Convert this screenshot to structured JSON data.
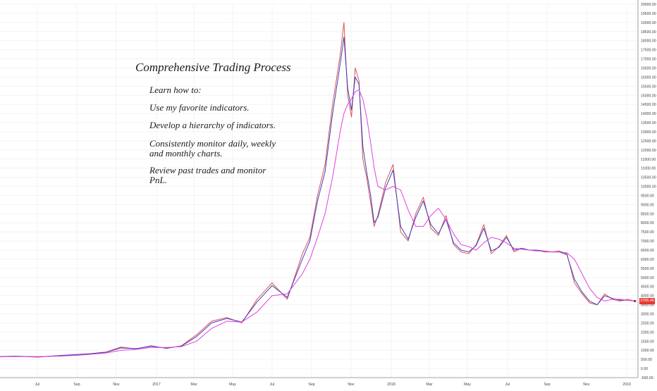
{
  "annotation": {
    "title": "Comprehensive Trading Process",
    "lines": [
      "Learn how to:",
      "Use my favorite indicators.",
      "Develop a hierarchy of indicators.",
      "Consistently monitor daily, weekly\nand monthly charts.",
      "Review past trades and monitor\nPnL."
    ]
  },
  "last_price_label": "3785.46",
  "colors": {
    "price_line": "#e05252",
    "fast_ma": "#3f3fbf",
    "slow_ma": "#e040e0",
    "last_price_badge": "#e53935",
    "axis_text": "#444444",
    "grid": "#f3f3f3"
  },
  "chart_data": {
    "type": "line",
    "grid": true,
    "legend": "none",
    "y_axis_position": "right",
    "ylim": [
      -500,
      20000
    ],
    "y_ticks": [
      "20000.00",
      "19500.00",
      "19000.00",
      "18500.00",
      "18000.00",
      "17500.00",
      "17000.00",
      "16500.00",
      "16000.00",
      "15500.00",
      "15000.00",
      "14500.00",
      "14000.00",
      "13500.00",
      "13000.00",
      "12500.00",
      "12000.00",
      "11500.00",
      "11000.00",
      "10500.00",
      "10000.00",
      "9500.00",
      "9000.00",
      "8500.00",
      "8000.00",
      "7500.00",
      "7000.00",
      "6500.00",
      "6000.00",
      "5500.00",
      "5000.00",
      "4500.00",
      "4000.00",
      "3500.00",
      "3000.00",
      "2500.00",
      "2000.00",
      "1500.00",
      "1000.00",
      "500.00",
      "0.00",
      "-500.00"
    ],
    "x_ticks": [
      "Jul",
      "Sep",
      "Nov",
      "2017",
      "Mar",
      "May",
      "Jul",
      "Sep",
      "Nov",
      "2018",
      "Mar",
      "May",
      "Jul",
      "Sep",
      "Nov",
      "2019"
    ],
    "x": [
      0,
      2,
      5,
      8,
      10,
      12,
      14,
      16,
      18,
      20,
      22,
      24,
      26,
      28,
      30,
      32,
      34,
      36,
      38,
      40,
      41,
      42,
      43,
      44,
      45,
      45.5,
      46,
      46.5,
      47,
      47.5,
      48,
      48.5,
      49,
      49.5,
      50,
      51,
      52,
      53,
      54,
      55,
      56,
      57,
      58,
      59,
      60,
      61,
      62,
      63,
      64,
      65,
      66,
      67,
      68,
      69,
      70,
      71,
      72,
      73,
      74,
      75,
      76,
      77,
      78,
      79,
      80,
      81,
      82,
      83,
      84
    ],
    "series": [
      {
        "values": [
          650,
          680,
          620,
          720,
          760,
          820,
          900,
          1180,
          1080,
          1250,
          1100,
          1250,
          1850,
          2600,
          2800,
          2500,
          3800,
          4700,
          3800,
          6300,
          7200,
          9500,
          11200,
          14500,
          17200,
          19000,
          15000,
          13800,
          16500,
          15800,
          11500,
          10500,
          9200,
          7800,
          8400,
          10200,
          11200,
          7500,
          7000,
          8500,
          9400,
          7700,
          7300,
          8400,
          6800,
          6400,
          6300,
          6800,
          7900,
          6300,
          6700,
          7300,
          6400,
          6600,
          6500,
          6500,
          6400,
          6400,
          6450,
          6300,
          4700,
          4100,
          3600,
          3500,
          4100,
          3800,
          3700,
          3800,
          3700
        ]
      },
      {
        "values": [
          650,
          680,
          640,
          710,
          760,
          810,
          890,
          1130,
          1090,
          1220,
          1120,
          1230,
          1750,
          2500,
          2750,
          2550,
          3650,
          4550,
          3900,
          6000,
          7000,
          9200,
          10800,
          14000,
          16700,
          18200,
          15400,
          14200,
          16000,
          15600,
          12200,
          10800,
          9600,
          8000,
          8300,
          9900,
          10900,
          7800,
          7100,
          8300,
          9200,
          7900,
          7400,
          8200,
          6900,
          6500,
          6400,
          6750,
          7700,
          6450,
          6650,
          7200,
          6500,
          6600,
          6500,
          6500,
          6450,
          6400,
          6400,
          6250,
          4900,
          4200,
          3700,
          3500,
          4000,
          3850,
          3750,
          3750,
          3700
        ]
      },
      {
        "values": [
          640,
          660,
          650,
          680,
          720,
          780,
          850,
          1000,
          1050,
          1150,
          1150,
          1200,
          1500,
          2200,
          2600,
          2550,
          3100,
          4000,
          4100,
          5200,
          6000,
          7200,
          8500,
          10500,
          13000,
          14000,
          14500,
          14800,
          15200,
          15300,
          14800,
          13800,
          12500,
          11000,
          10000,
          9800,
          10000,
          9800,
          8700,
          7800,
          7800,
          8400,
          8800,
          8200,
          7400,
          6800,
          6700,
          6500,
          6900,
          7200,
          7100,
          6900,
          6600,
          6550,
          6500,
          6450,
          6450,
          6400,
          6400,
          6350,
          6000,
          5200,
          4400,
          3900,
          3700,
          3800,
          3800,
          3750,
          3700
        ]
      }
    ]
  }
}
